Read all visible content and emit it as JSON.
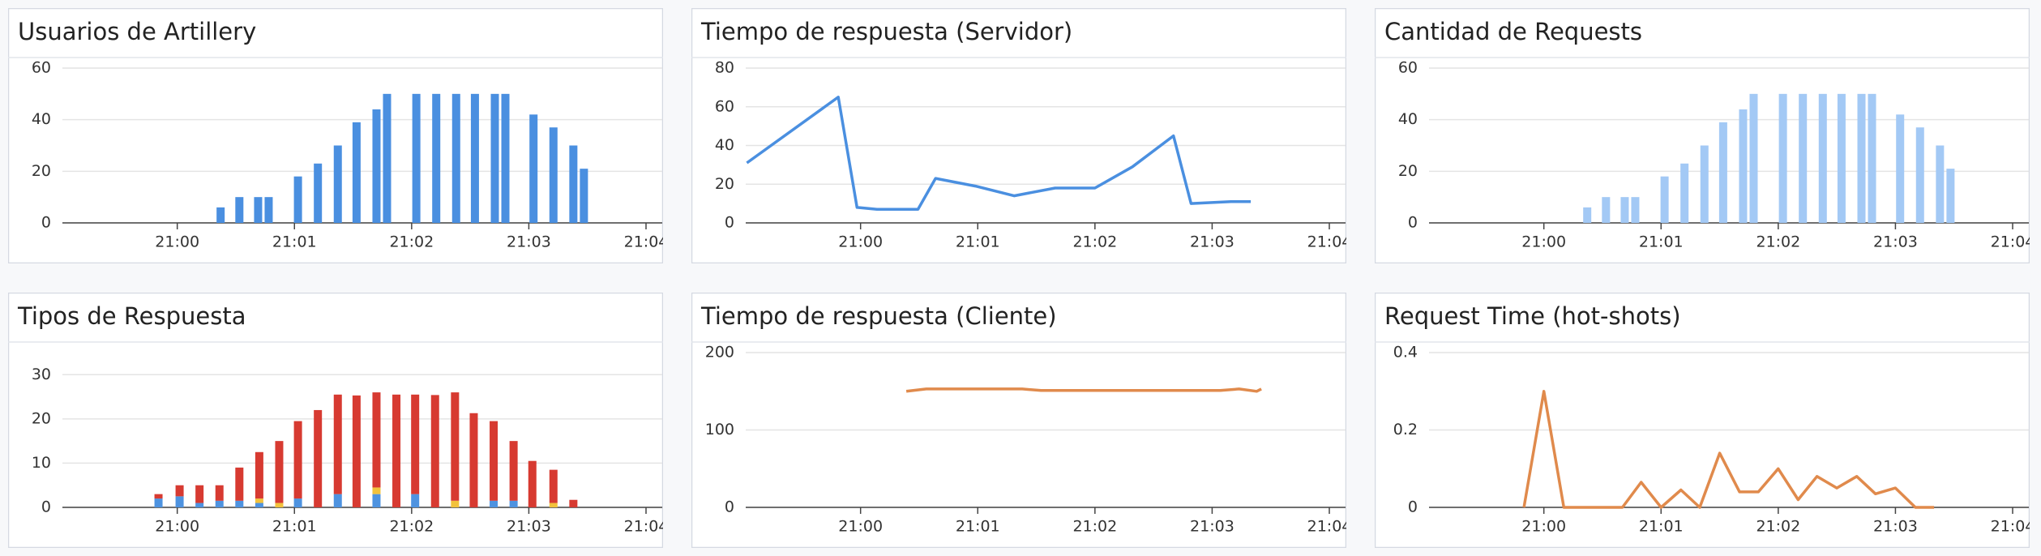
{
  "chart_data": [
    {
      "type": "bar",
      "title": "Usuarios de Artillery",
      "color": "#4a8fe0",
      "x": [
        0.37,
        0.53,
        0.69,
        0.78,
        1.03,
        1.2,
        1.37,
        1.53,
        1.7,
        1.79,
        2.04,
        2.21,
        2.38,
        2.54,
        2.71,
        2.8,
        3.04,
        3.21,
        3.38,
        3.47
      ],
      "values": [
        6,
        10,
        10,
        10,
        18,
        23,
        30,
        39,
        44,
        50,
        50,
        50,
        50,
        50,
        50,
        50,
        42,
        37,
        30,
        21
      ],
      "xlim": [
        -0.98,
        4
      ],
      "xticks": [
        {
          "value": 0,
          "label": "21:00"
        },
        {
          "value": 1,
          "label": "21:01"
        },
        {
          "value": 2,
          "label": "21:02"
        },
        {
          "value": 3,
          "label": "21:03"
        },
        {
          "value": 4,
          "label": "21:04"
        }
      ],
      "ylim": [
        0,
        60
      ],
      "yticks": [
        0,
        20,
        40,
        60
      ],
      "grid": true
    },
    {
      "type": "line",
      "title": "Tiempo de respuesta (Servidor)",
      "color": "#4a8fe0",
      "x": [
        -0.97,
        -0.19,
        -0.03,
        0.14,
        0.49,
        0.64,
        0.98,
        1.31,
        1.66,
        2,
        2.32,
        2.67,
        2.82,
        3.16,
        3.33
      ],
      "values": [
        31,
        65,
        8,
        7,
        7,
        23,
        19,
        14,
        18,
        18,
        29,
        45,
        10,
        11,
        11
      ],
      "xlim": [
        -0.98,
        4
      ],
      "xticks": [
        {
          "value": 0,
          "label": "21:00"
        },
        {
          "value": 1,
          "label": "21:01"
        },
        {
          "value": 2,
          "label": "21:02"
        },
        {
          "value": 3,
          "label": "21:03"
        },
        {
          "value": 4,
          "label": "21:04"
        }
      ],
      "ylim": [
        0,
        80
      ],
      "yticks": [
        0,
        20,
        40,
        60,
        80
      ],
      "grid": true
    },
    {
      "type": "bar",
      "title": "Cantidad de Requests",
      "color": "#a3c9f5",
      "x": [
        0.37,
        0.53,
        0.69,
        0.78,
        1.03,
        1.2,
        1.37,
        1.53,
        1.7,
        1.79,
        2.04,
        2.21,
        2.38,
        2.54,
        2.71,
        2.8,
        3.04,
        3.21,
        3.38,
        3.47
      ],
      "values": [
        6,
        10,
        10,
        10,
        18,
        23,
        30,
        39,
        44,
        50,
        50,
        50,
        50,
        50,
        50,
        50,
        42,
        37,
        30,
        21
      ],
      "xlim": [
        -0.98,
        4
      ],
      "xticks": [
        {
          "value": 0,
          "label": "21:00"
        },
        {
          "value": 1,
          "label": "21:01"
        },
        {
          "value": 2,
          "label": "21:02"
        },
        {
          "value": 3,
          "label": "21:03"
        },
        {
          "value": 4,
          "label": "21:04"
        }
      ],
      "ylim": [
        0,
        60
      ],
      "yticks": [
        0,
        20,
        40,
        60
      ],
      "grid": true
    },
    {
      "type": "stacked_bar",
      "title": "Tipos de Respuesta",
      "x": [
        -0.16,
        0.02,
        0.19,
        0.36,
        0.53,
        0.7,
        0.87,
        1.03,
        1.2,
        1.37,
        1.53,
        1.7,
        1.87,
        2.03,
        2.2,
        2.37,
        2.53,
        2.7,
        2.87,
        3.03,
        3.21,
        3.38
      ],
      "series": [
        {
          "color": "#4e93e0",
          "values": [
            2,
            2.5,
            1,
            1.5,
            1.5,
            1,
            0,
            2,
            0,
            3,
            0,
            3,
            0,
            3,
            0,
            0,
            0,
            1.5,
            1.5,
            0,
            0,
            0
          ]
        },
        {
          "color": "#f2c23c",
          "values": [
            0,
            0,
            0,
            0,
            0,
            1,
            1,
            0,
            0,
            0,
            0,
            1.5,
            0,
            0,
            0,
            1.5,
            0,
            0,
            0,
            0,
            1,
            0
          ]
        },
        {
          "color": "#d73a31",
          "values": [
            1,
            2.5,
            4,
            3.5,
            7.5,
            10.5,
            14,
            17.5,
            22,
            22.5,
            25.3,
            21.5,
            25.5,
            22.5,
            25.4,
            24.5,
            21.3,
            18,
            13.5,
            10.5,
            7.5,
            1.7
          ]
        }
      ],
      "xlim": [
        -0.98,
        4
      ],
      "xticks": [
        {
          "value": 0,
          "label": "21:00"
        },
        {
          "value": 1,
          "label": "21:01"
        },
        {
          "value": 2,
          "label": "21:02"
        },
        {
          "value": 3,
          "label": "21:03"
        },
        {
          "value": 4,
          "label": "21:04"
        }
      ],
      "ylim": [
        0,
        35
      ],
      "yticks": [
        0,
        10,
        20,
        30
      ],
      "grid": true
    },
    {
      "type": "line",
      "title": "Tiempo de respuesta (Cliente)",
      "color": "#e08a4c",
      "x": [
        0.39,
        0.56,
        1.38,
        1.54,
        3.07,
        3.23,
        3.38,
        3.42
      ],
      "values": [
        150,
        153,
        153,
        151,
        151,
        153,
        150,
        153
      ],
      "xlim": [
        -0.98,
        4
      ],
      "xticks": [
        {
          "value": 0,
          "label": "21:00"
        },
        {
          "value": 1,
          "label": "21:01"
        },
        {
          "value": 2,
          "label": "21:02"
        },
        {
          "value": 3,
          "label": "21:03"
        },
        {
          "value": 4,
          "label": "21:04"
        }
      ],
      "ylim": [
        0,
        200
      ],
      "yticks": [
        0,
        100,
        200
      ],
      "grid": true
    },
    {
      "type": "line",
      "title": "Request Time (hot-shots)",
      "color": "#e08a4c",
      "x": [
        -0.17,
        0,
        0.17,
        0.67,
        0.83,
        1,
        1.17,
        1.33,
        1.5,
        1.67,
        1.83,
        2,
        2.17,
        2.33,
        2.5,
        2.67,
        2.83,
        3,
        3.17,
        3.33
      ],
      "values": [
        0,
        0.3,
        0,
        0,
        0.065,
        0,
        0.045,
        0,
        0.14,
        0.04,
        0.04,
        0.1,
        0.02,
        0.08,
        0.05,
        0.08,
        0.035,
        0.05,
        0,
        0
      ],
      "xlim": [
        -0.98,
        4
      ],
      "xticks": [
        {
          "value": 0,
          "label": "21:00"
        },
        {
          "value": 1,
          "label": "21:01"
        },
        {
          "value": 2,
          "label": "21:02"
        },
        {
          "value": 3,
          "label": "21:03"
        },
        {
          "value": 4,
          "label": "21:04"
        }
      ],
      "ylim": [
        0,
        0.4
      ],
      "yticks": [
        0,
        0.2,
        0.4
      ],
      "grid": true
    }
  ]
}
